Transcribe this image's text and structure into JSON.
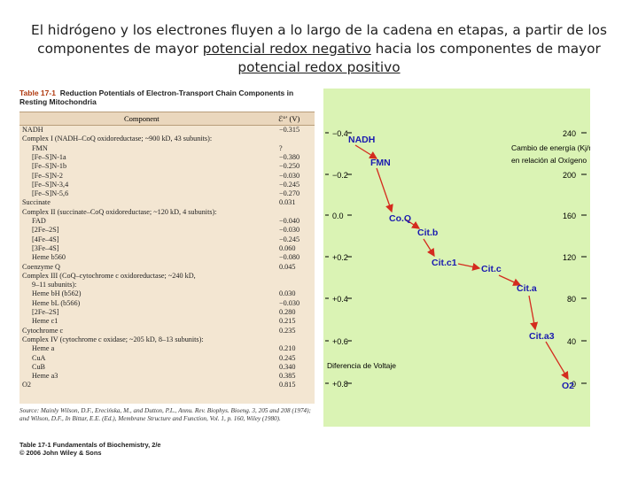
{
  "heading": {
    "line1": "El hidrógeno y los electrones fluyen a lo largo de la cadena en etapas, a partir de los",
    "line2_a": "componentes de mayor ",
    "line2_link": "potencial redox negativo",
    "line2_b": " hacia los componentes de mayor",
    "line3_link": "potencial redox positivo"
  },
  "table": {
    "label": "Table 17-1",
    "title": "Reduction Potentials of Electron-Transport Chain Components in Resting Mitochondria",
    "col_component": "Component",
    "col_value": "ℰ°′ (V)",
    "rows": [
      {
        "c": "NADH",
        "v": "−0.315",
        "i": 0
      },
      {
        "c": "Complex I (NADH–CoQ oxidoreductase; ~900 kD, 43 subunits):",
        "v": "",
        "i": 0
      },
      {
        "c": "FMN",
        "v": "?",
        "i": 1
      },
      {
        "c": "[Fe–S]N-1a",
        "v": "−0.380",
        "i": 1
      },
      {
        "c": "[Fe–S]N-1b",
        "v": "−0.250",
        "i": 1
      },
      {
        "c": "[Fe–S]N-2",
        "v": "−0.030",
        "i": 1
      },
      {
        "c": "[Fe–S]N-3,4",
        "v": "−0.245",
        "i": 1
      },
      {
        "c": "[Fe–S]N-5,6",
        "v": "−0.270",
        "i": 1
      },
      {
        "c": "Succinate",
        "v": "0.031",
        "i": 0
      },
      {
        "c": "Complex II (succinate–CoQ oxidoreductase; ~120 kD, 4 subunits):",
        "v": "",
        "i": 0
      },
      {
        "c": "FAD",
        "v": "−0.040",
        "i": 1
      },
      {
        "c": "[2Fe–2S]",
        "v": "−0.030",
        "i": 1
      },
      {
        "c": "[4Fe–4S]",
        "v": "−0.245",
        "i": 1
      },
      {
        "c": "[3Fe–4S]",
        "v": "0.060",
        "i": 1
      },
      {
        "c": "Heme b560",
        "v": "−0.080",
        "i": 1
      },
      {
        "c": "Coenzyme Q",
        "v": "0.045",
        "i": 0
      },
      {
        "c": "Complex III (CoQ–cytochrome c oxidoreductase; ~240 kD,",
        "v": "",
        "i": 0
      },
      {
        "c": "9–11 subunits):",
        "v": "",
        "i": 1
      },
      {
        "c": "Heme bH (b562)",
        "v": "0.030",
        "i": 1
      },
      {
        "c": "Heme bL (b566)",
        "v": "−0.030",
        "i": 1
      },
      {
        "c": "[2Fe–2S]",
        "v": "0.280",
        "i": 1
      },
      {
        "c": "Heme c1",
        "v": "0.215",
        "i": 1
      },
      {
        "c": "Cytochrome c",
        "v": "0.235",
        "i": 0
      },
      {
        "c": "Complex IV (cytochrome c oxidase; ~205 kD, 8–13 subunits):",
        "v": "",
        "i": 0
      },
      {
        "c": "Heme a",
        "v": "0.210",
        "i": 1
      },
      {
        "c": "CuA",
        "v": "0.245",
        "i": 1
      },
      {
        "c": "CuB",
        "v": "0.340",
        "i": 1
      },
      {
        "c": "Heme a3",
        "v": "0.385",
        "i": 1
      },
      {
        "c": "O2",
        "v": "0.815",
        "i": 0
      }
    ],
    "source": "Source: Mainly Wilson, D.F., Erecińska, M., and Dutton, P.L., Annu. Rev. Biophys. Bioeng. 3, 205 and 208 (1974); and Wilson, D.F., In Bittar, E.E. (Ed.), Membrane Structure and Function, Vol. 1, p. 160, Wiley (1980).",
    "credit_line1": "Table 17-1  Fundamentals of Biochemistry, 2/e",
    "credit_line2": "© 2006 John Wiley & Sons"
  },
  "diagram": {
    "left_ticks": [
      "−0.4",
      "−0.2",
      "0.0",
      "+0.2",
      "+0.4",
      "+0.6",
      "+0.8"
    ],
    "right_ticks": [
      "240",
      "200",
      "160",
      "120",
      "80",
      "40",
      "0"
    ],
    "energy_label_1": "Cambio de energía (Kj/mol)",
    "energy_label_2": "en relación al Oxígeno",
    "voltage_label": "Diferencia de Voltaje",
    "nodes": [
      "NADH",
      "FMN",
      "Co.Q",
      "Cit.b",
      "Cit.c1",
      "Cit.c",
      "Cit.a",
      "Cit.a3",
      "O2"
    ],
    "colors": {
      "arrow": "#d42b1e",
      "node_text": "#1a1ab0",
      "background": "#daf3b4"
    }
  }
}
